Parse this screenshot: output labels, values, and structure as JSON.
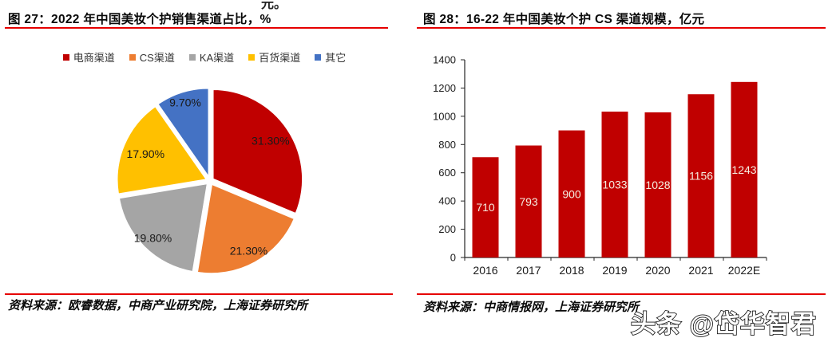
{
  "page": {
    "top_fragment": "元。"
  },
  "panels": {
    "left": {
      "title": "图 27：2022 年中国美妆个护销售渠道占比，%",
      "source": "资料来源：欧睿数据，中商产业研究院，上海证券研究所"
    },
    "right": {
      "title": "图 28：16-22 年中国美妆个护 CS 渠道规模，亿元",
      "source": "资料来源：中商情报网，上海证券研究所",
      "watermark": "头条 @岱华智君"
    }
  },
  "colors": {
    "rule_red": "#e60000",
    "bar_red": "#C00000",
    "axis": "#262626",
    "bar_label": "#F5EDE0"
  },
  "chart_data": [
    {
      "type": "pie",
      "title": "2022 年中国美妆个护销售渠道占比，%",
      "labels": [
        "电商渠道",
        "CS渠道",
        "KA渠道",
        "百货渠道",
        "其它"
      ],
      "values": [
        31.3,
        21.3,
        19.8,
        17.9,
        9.7
      ],
      "value_labels": [
        "31.30%",
        "21.30%",
        "19.80%",
        "17.90%",
        "9.70%"
      ],
      "colors": [
        "#C00000",
        "#ED7D31",
        "#A5A5A5",
        "#FFC000",
        "#4472C4"
      ],
      "label_radius": [
        0.77,
        0.85,
        0.86,
        0.74,
        0.88
      ],
      "start_angle": 0,
      "direction": "clockwise",
      "legend_position": "top"
    },
    {
      "type": "bar",
      "title": "16-22 年中国美妆个护 CS 渠道规模，亿元",
      "categories": [
        "2016",
        "2017",
        "2018",
        "2019",
        "2020",
        "2021",
        "2022E"
      ],
      "values": [
        710,
        793,
        900,
        1033,
        1028,
        1156,
        1243
      ],
      "bar_color": "#C00000",
      "label_color": "#F5EDE0",
      "ylabel": "",
      "xlabel": "",
      "ylim": [
        0,
        1400
      ],
      "ytick_step": 200,
      "grid": false,
      "data_labels": "inside-center"
    }
  ]
}
